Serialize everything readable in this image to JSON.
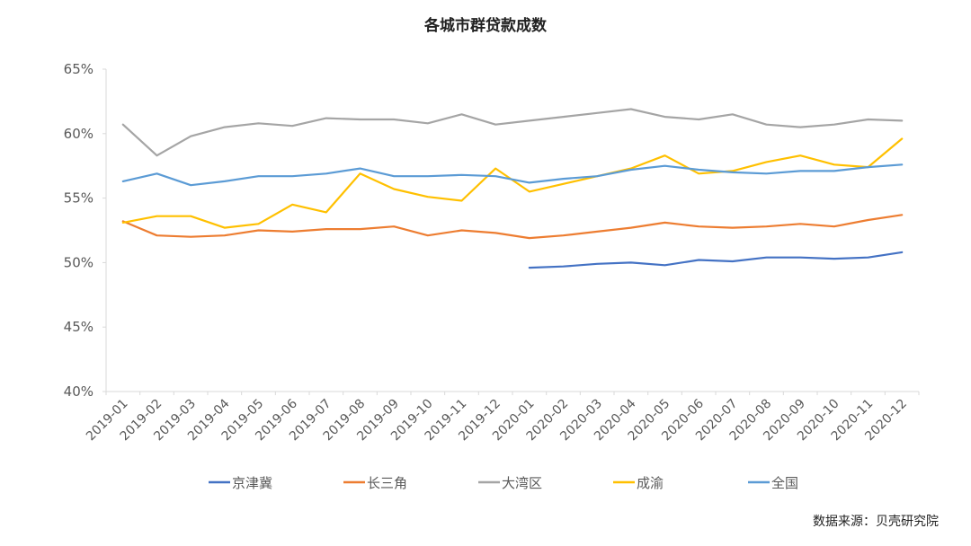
{
  "chart_data": {
    "type": "line",
    "title": "各城市群贷款成数",
    "source": "数据来源：贝壳研究院",
    "x": [
      "2019-01",
      "2019-02",
      "2019-03",
      "2019-04",
      "2019-05",
      "2019-06",
      "2019-07",
      "2019-08",
      "2019-09",
      "2019-10",
      "2019-11",
      "2019-12",
      "2020-01",
      "2020-02",
      "2020-03",
      "2020-04",
      "2020-05",
      "2020-06",
      "2020-07",
      "2020-08",
      "2020-09",
      "2020-10",
      "2020-11",
      "2020-12"
    ],
    "yticks": [
      "40%",
      "45%",
      "50%",
      "55%",
      "60%",
      "65%"
    ],
    "ylim": [
      0.4,
      0.65
    ],
    "grid": false,
    "legend_position": "bottom",
    "series": [
      {
        "name": "京津冀",
        "color": "#4472C4",
        "values": [
          null,
          null,
          null,
          null,
          null,
          null,
          null,
          null,
          null,
          null,
          null,
          null,
          0.496,
          0.497,
          0.499,
          0.5,
          0.498,
          0.502,
          0.501,
          0.504,
          0.504,
          0.503,
          0.504,
          0.508
        ]
      },
      {
        "name": "长三角",
        "color": "#ED7D31",
        "values": [
          0.532,
          0.521,
          0.52,
          0.521,
          0.525,
          0.524,
          0.526,
          0.526,
          0.528,
          0.521,
          0.525,
          0.523,
          0.519,
          0.521,
          0.524,
          0.527,
          0.531,
          0.528,
          0.527,
          0.528,
          0.53,
          0.528,
          0.533,
          0.537
        ]
      },
      {
        "name": "大湾区",
        "color": "#A5A5A5",
        "values": [
          0.607,
          0.583,
          0.598,
          0.605,
          0.608,
          0.606,
          0.612,
          0.611,
          0.611,
          0.608,
          0.615,
          0.607,
          0.61,
          0.613,
          0.616,
          0.619,
          0.613,
          0.611,
          0.615,
          0.607,
          0.605,
          0.607,
          0.611,
          0.61
        ]
      },
      {
        "name": "成渝",
        "color": "#FFC000",
        "values": [
          0.531,
          0.536,
          0.536,
          0.527,
          0.53,
          0.545,
          0.539,
          0.569,
          0.557,
          0.551,
          0.548,
          0.573,
          0.555,
          0.561,
          0.567,
          0.573,
          0.583,
          0.569,
          0.571,
          0.578,
          0.583,
          0.576,
          0.574,
          0.596
        ]
      },
      {
        "name": "全国",
        "color": "#5B9BD5",
        "values": [
          0.563,
          0.569,
          0.56,
          0.563,
          0.567,
          0.567,
          0.569,
          0.573,
          0.567,
          0.567,
          0.568,
          0.567,
          0.562,
          0.565,
          0.567,
          0.572,
          0.575,
          0.572,
          0.57,
          0.569,
          0.571,
          0.571,
          0.574,
          0.576
        ]
      }
    ]
  }
}
